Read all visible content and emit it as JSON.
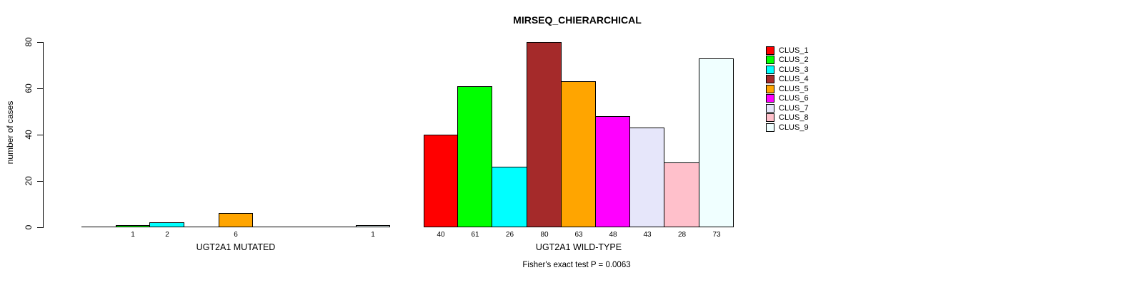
{
  "chart_data": {
    "type": "bar",
    "title": "MIRSEQ_CHIERARCHICAL",
    "ylabel": "number of cases",
    "ylim": [
      0,
      80
    ],
    "yticks": [
      "0",
      "20",
      "40",
      "60",
      "80"
    ],
    "grid": false,
    "legend_position": "right",
    "footer": "Fisher's exact test P = 0.0063",
    "legend": [
      {
        "label": "CLUS_1",
        "color": "#FF0000"
      },
      {
        "label": "CLUS_2",
        "color": "#00FF00"
      },
      {
        "label": "CLUS_3",
        "color": "#00FFFF"
      },
      {
        "label": "CLUS_4",
        "color": "#A52A2A"
      },
      {
        "label": "CLUS_5",
        "color": "#FFA500"
      },
      {
        "label": "CLUS_6",
        "color": "#FF00FF"
      },
      {
        "label": "CLUS_7",
        "color": "#E6E6FA"
      },
      {
        "label": "CLUS_8",
        "color": "#FFC0CB"
      },
      {
        "label": "CLUS_9",
        "color": "#F0FFFF"
      }
    ],
    "categories": [
      "CLUS_1",
      "CLUS_2",
      "CLUS_3",
      "CLUS_4",
      "CLUS_5",
      "CLUS_6",
      "CLUS_7",
      "CLUS_8",
      "CLUS_9"
    ],
    "groups": [
      {
        "label": "UGT2A1 MUTATED",
        "values": [
          0,
          1,
          2,
          0,
          6,
          0,
          0,
          0,
          1
        ],
        "bar_labels": [
          "",
          "1",
          "2",
          "",
          "6",
          "",
          "",
          "",
          "1"
        ]
      },
      {
        "label": "UGT2A1 WILD-TYPE",
        "values": [
          40,
          61,
          26,
          80,
          63,
          48,
          43,
          28,
          73
        ],
        "bar_labels": [
          "40",
          "61",
          "26",
          "80",
          "63",
          "48",
          "43",
          "28",
          "73"
        ]
      }
    ]
  }
}
